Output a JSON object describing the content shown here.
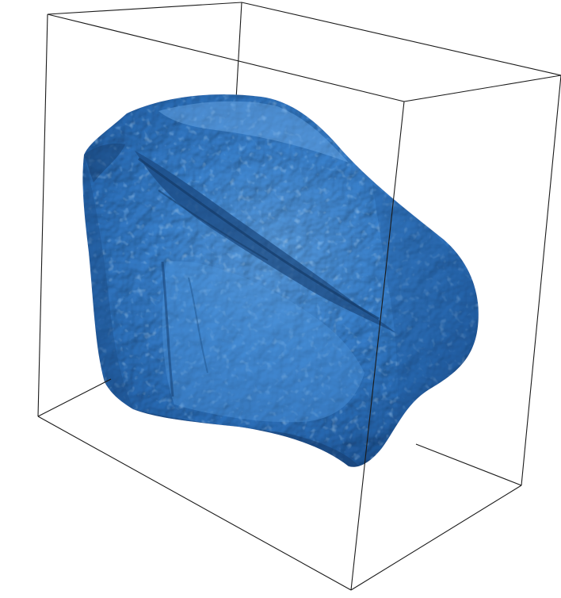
{
  "scene": {
    "background_color": "#ffffff",
    "box_edge_color": "#1a1a1a",
    "surface_color": "#2f79c8",
    "surface_shadow_color": "#1c4f8c",
    "surface_highlight_color": "#7fb6ee"
  }
}
